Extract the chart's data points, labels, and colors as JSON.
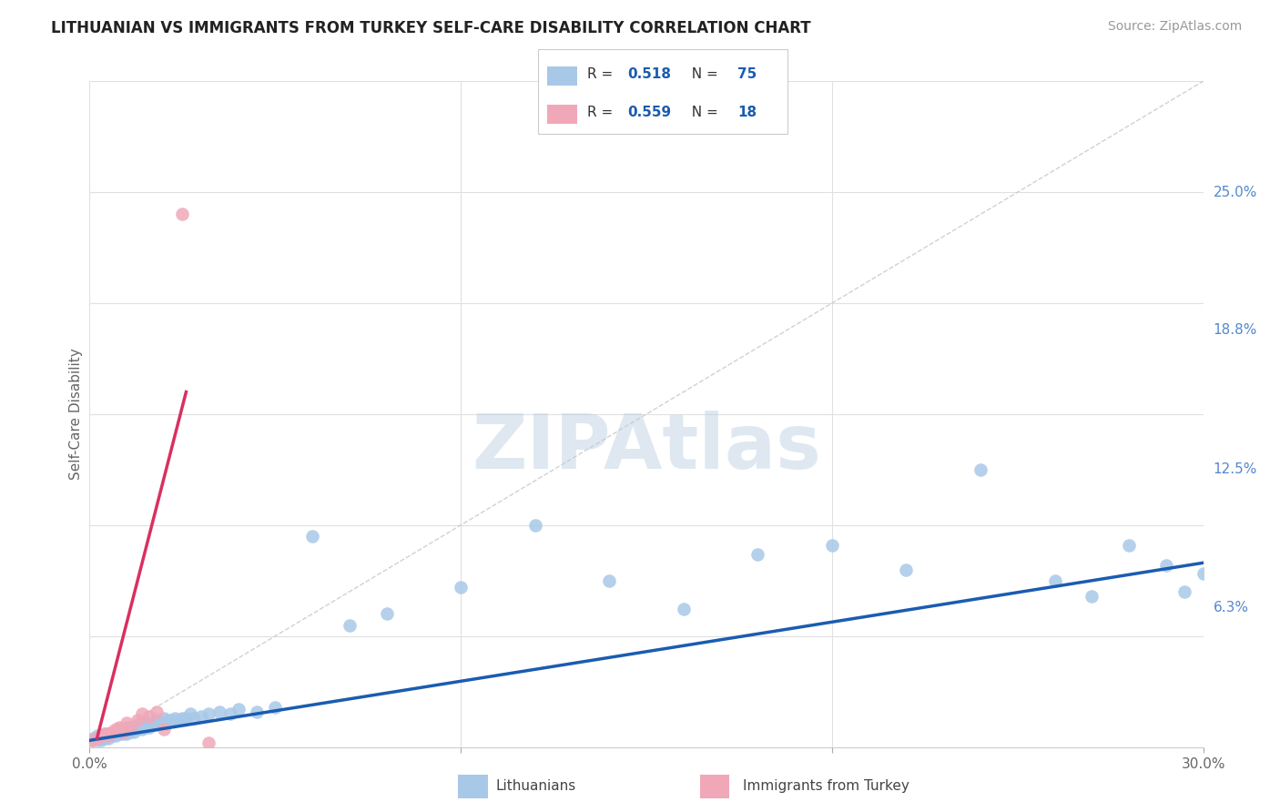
{
  "title": "LITHUANIAN VS IMMIGRANTS FROM TURKEY SELF-CARE DISABILITY CORRELATION CHART",
  "source": "Source: ZipAtlas.com",
  "ylabel": "Self-Care Disability",
  "xlim": [
    0.0,
    0.3
  ],
  "ylim": [
    0.0,
    0.3
  ],
  "ytick_labels": [
    "6.3%",
    "12.5%",
    "18.8%",
    "25.0%"
  ],
  "ytick_values": [
    0.063,
    0.125,
    0.188,
    0.25
  ],
  "blue_R": 0.518,
  "blue_N": 75,
  "pink_R": 0.559,
  "pink_N": 18,
  "blue_color": "#a8c8e8",
  "pink_color": "#f0a8b8",
  "blue_line_color": "#1a5cb0",
  "pink_line_color": "#d83060",
  "diagonal_color": "#cccccc",
  "background_color": "#ffffff",
  "grid_color": "#e0e0e0",
  "watermark": "ZIPAtlas",
  "legend_R_color": "#1a5cb0",
  "legend_N_color": "#1a5cb0",
  "ytick_color": "#5588cc",
  "title_color": "#222222",
  "source_color": "#999999",
  "blue_line_x0": 0.0,
  "blue_line_y0": 0.003,
  "blue_line_x1": 0.3,
  "blue_line_y1": 0.083,
  "pink_line_x0": 0.002,
  "pink_line_y0": 0.004,
  "pink_line_x1": 0.026,
  "pink_line_y1": 0.16,
  "blue_x": [
    0.001,
    0.001,
    0.002,
    0.002,
    0.002,
    0.003,
    0.003,
    0.003,
    0.004,
    0.004,
    0.004,
    0.005,
    0.005,
    0.005,
    0.006,
    0.006,
    0.007,
    0.007,
    0.008,
    0.008,
    0.008,
    0.009,
    0.009,
    0.01,
    0.01,
    0.011,
    0.011,
    0.012,
    0.012,
    0.013,
    0.013,
    0.014,
    0.014,
    0.015,
    0.015,
    0.016,
    0.016,
    0.017,
    0.018,
    0.018,
    0.019,
    0.02,
    0.02,
    0.021,
    0.022,
    0.023,
    0.024,
    0.025,
    0.026,
    0.027,
    0.028,
    0.03,
    0.032,
    0.035,
    0.038,
    0.04,
    0.045,
    0.05,
    0.06,
    0.07,
    0.08,
    0.1,
    0.12,
    0.14,
    0.16,
    0.18,
    0.2,
    0.22,
    0.24,
    0.26,
    0.27,
    0.28,
    0.29,
    0.295,
    0.3
  ],
  "blue_y": [
    0.003,
    0.004,
    0.003,
    0.004,
    0.005,
    0.003,
    0.004,
    0.005,
    0.004,
    0.005,
    0.006,
    0.004,
    0.005,
    0.006,
    0.005,
    0.006,
    0.005,
    0.007,
    0.006,
    0.007,
    0.008,
    0.006,
    0.008,
    0.006,
    0.009,
    0.007,
    0.009,
    0.007,
    0.009,
    0.008,
    0.01,
    0.008,
    0.01,
    0.009,
    0.011,
    0.009,
    0.011,
    0.01,
    0.01,
    0.012,
    0.011,
    0.011,
    0.013,
    0.012,
    0.012,
    0.013,
    0.012,
    0.013,
    0.013,
    0.015,
    0.013,
    0.014,
    0.015,
    0.016,
    0.015,
    0.017,
    0.016,
    0.018,
    0.095,
    0.055,
    0.06,
    0.072,
    0.1,
    0.075,
    0.062,
    0.087,
    0.091,
    0.08,
    0.125,
    0.075,
    0.068,
    0.091,
    0.082,
    0.07,
    0.078
  ],
  "pink_x": [
    0.001,
    0.002,
    0.003,
    0.004,
    0.005,
    0.006,
    0.007,
    0.008,
    0.009,
    0.01,
    0.011,
    0.013,
    0.014,
    0.016,
    0.018,
    0.02,
    0.025,
    0.032
  ],
  "pink_y": [
    0.003,
    0.004,
    0.005,
    0.006,
    0.005,
    0.007,
    0.008,
    0.009,
    0.007,
    0.011,
    0.009,
    0.012,
    0.015,
    0.014,
    0.016,
    0.008,
    0.24,
    0.002
  ]
}
